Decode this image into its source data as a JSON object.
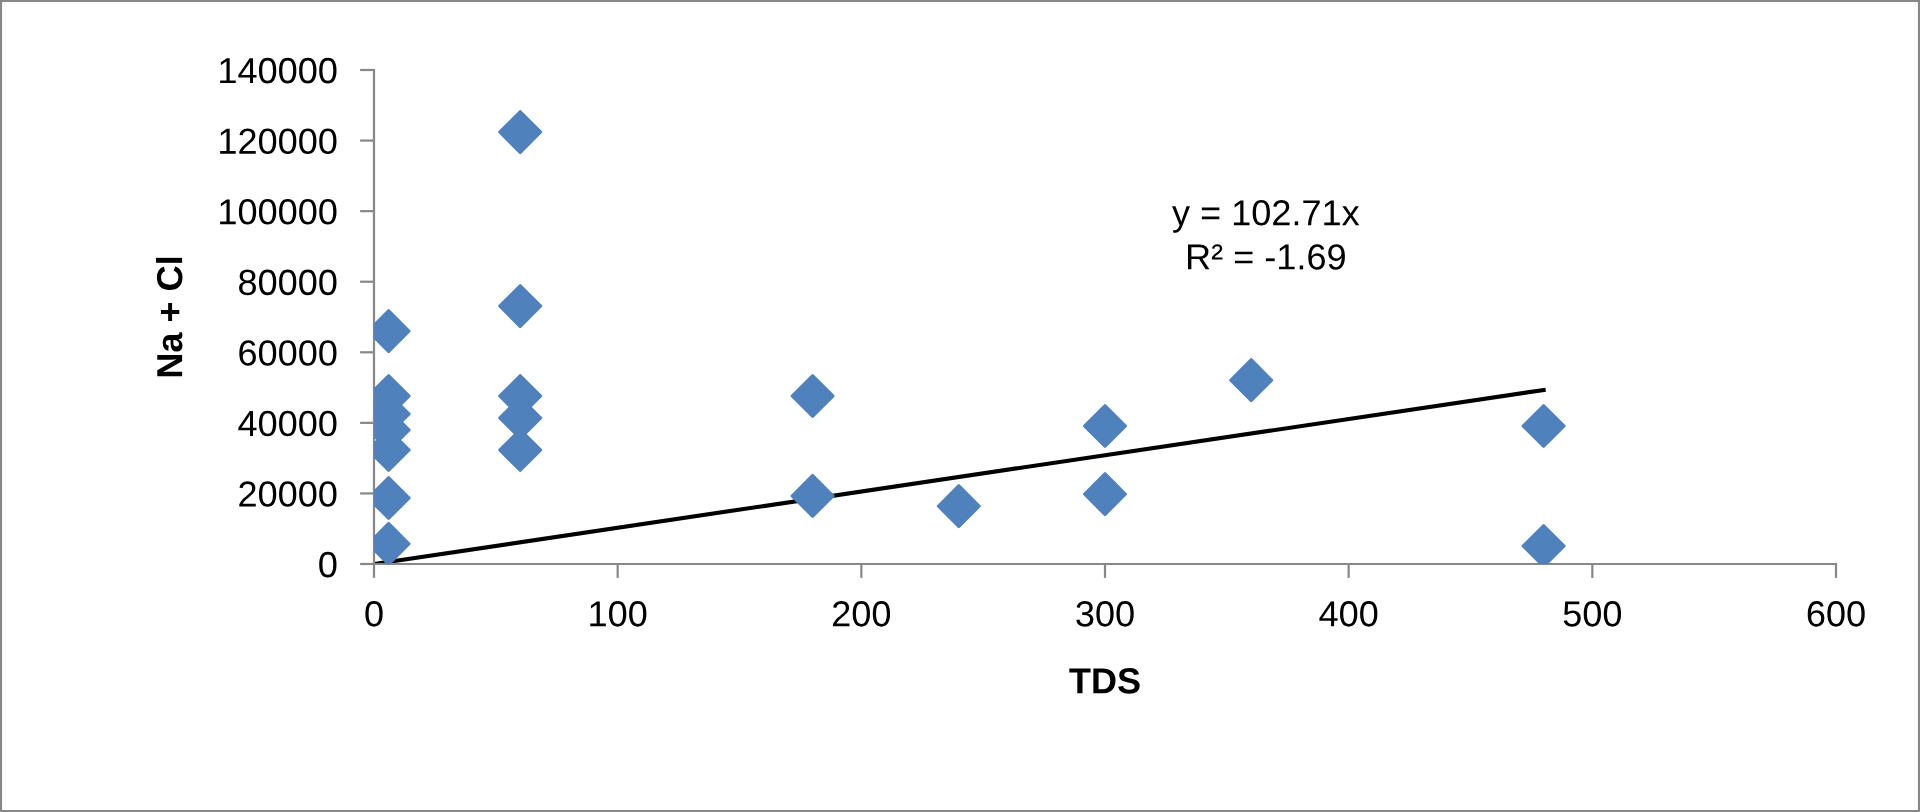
{
  "chart_data": {
    "type": "scatter",
    "xlabel": "TDS",
    "ylabel": "Na + Cl",
    "xlim": [
      0,
      600
    ],
    "xticks": [
      0,
      100,
      200,
      300,
      400,
      500,
      600
    ],
    "ylim": [
      0,
      140000
    ],
    "yticks": [
      0,
      20000,
      40000,
      60000,
      80000,
      100000,
      120000,
      140000
    ],
    "grid": false,
    "legend": false,
    "marker": "diamond",
    "series": [
      {
        "color": "#4f81bd",
        "x": [
          6,
          6,
          6,
          6,
          6,
          6,
          6,
          60,
          60,
          60,
          60,
          60,
          180,
          180,
          240,
          300,
          300,
          360,
          480,
          480
        ],
        "values": [
          66000,
          47600,
          42500,
          38000,
          32300,
          18700,
          5700,
          122400,
          73100,
          47600,
          41400,
          32300,
          47600,
          19300,
          16400,
          39100,
          19800,
          52100,
          39100,
          5100
        ]
      },
      {
        "type": "line",
        "color": "#000000",
        "x": [
          0,
          480
        ],
        "values": [
          0,
          49300
        ],
        "line_style": "solid",
        "marker": "none"
      }
    ],
    "annotations": [
      "y = 102.71x\nR² = -1.69"
    ]
  }
}
